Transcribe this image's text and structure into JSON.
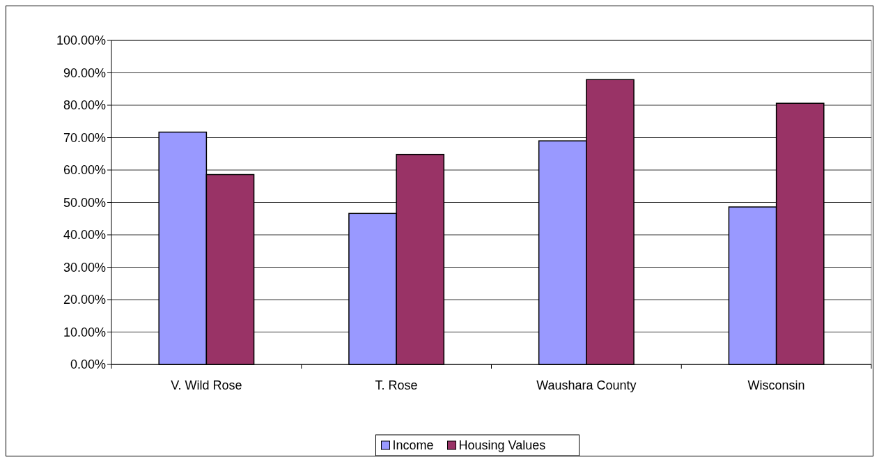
{
  "chart_data": {
    "type": "bar",
    "categories": [
      "V. Wild Rose",
      "T. Rose",
      "Waushara County",
      "Wisconsin"
    ],
    "series": [
      {
        "name": "Income",
        "color": "#9999ff",
        "values": [
          71.7,
          46.6,
          69.0,
          48.6
        ]
      },
      {
        "name": "Housing Values",
        "color": "#993366",
        "values": [
          58.6,
          64.8,
          87.9,
          80.6
        ]
      }
    ],
    "ylim": [
      0,
      100
    ],
    "yticks": [
      {
        "value": 0,
        "label": "0.00%"
      },
      {
        "value": 10,
        "label": "10.00%"
      },
      {
        "value": 20,
        "label": "20.00%"
      },
      {
        "value": 30,
        "label": "30.00%"
      },
      {
        "value": 40,
        "label": "40.00%"
      },
      {
        "value": 50,
        "label": "50.00%"
      },
      {
        "value": 60,
        "label": "60.00%"
      },
      {
        "value": 70,
        "label": "70.00%"
      },
      {
        "value": 80,
        "label": "80.00%"
      },
      {
        "value": 90,
        "label": "90.00%"
      },
      {
        "value": 100,
        "label": "100.00%"
      }
    ],
    "grid": "y",
    "legend": "bottom"
  }
}
